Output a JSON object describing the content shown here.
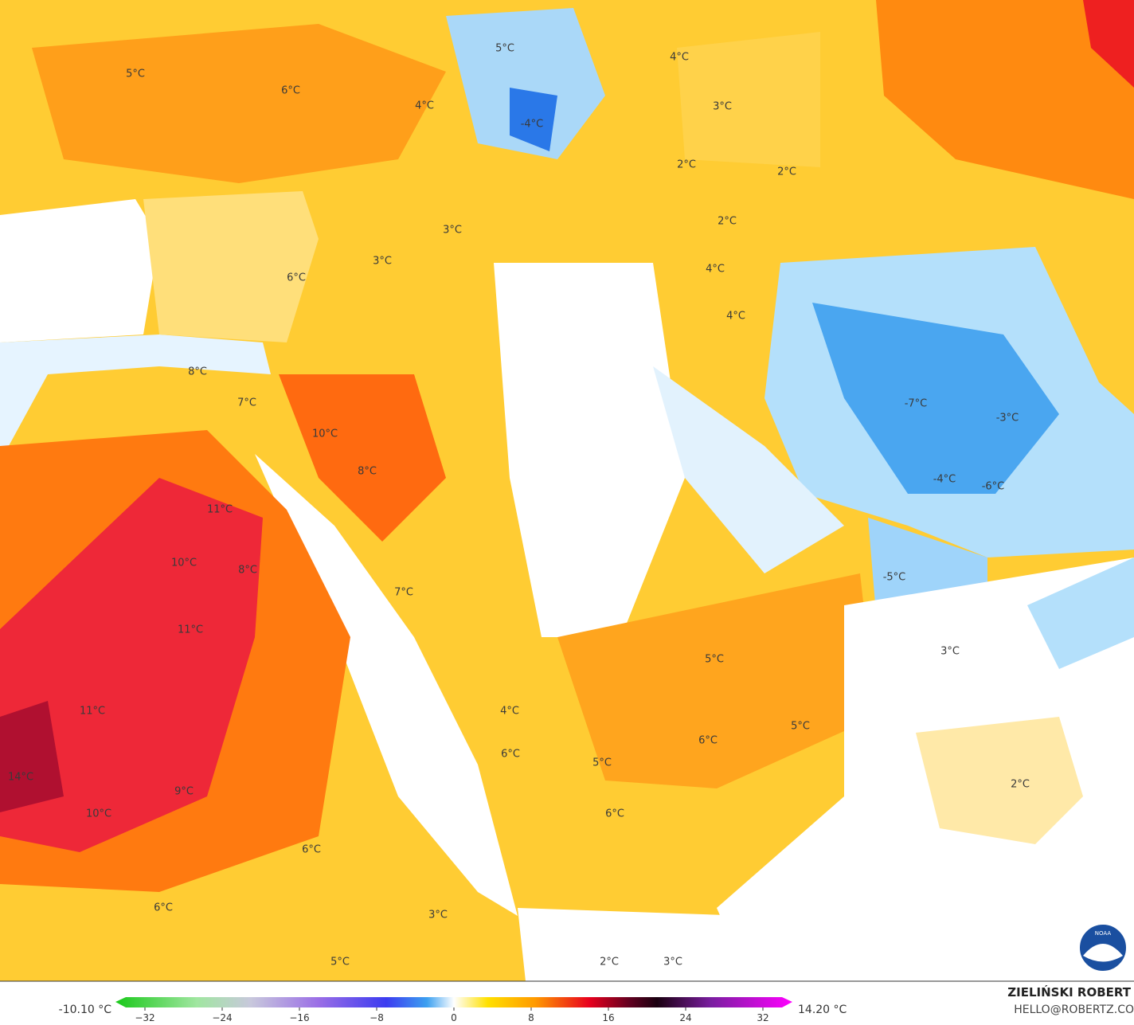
{
  "map": {
    "labels": [
      "5°C",
      "6°C",
      "4°C",
      "5°C",
      "-4°C",
      "4°C",
      "3°C",
      "2°C",
      "2°C",
      "2°C",
      "3°C",
      "3°C",
      "6°C",
      "4°C",
      "4°C",
      "8°C",
      "7°C",
      "10°C",
      "8°C",
      "-7°C",
      "-3°C",
      "-4°C",
      "-6°C",
      "11°C",
      "10°C",
      "8°C",
      "7°C",
      "-5°C",
      "11°C",
      "3°C",
      "5°C",
      "11°C",
      "4°C",
      "6°C",
      "5°C",
      "6°C",
      "5°C",
      "14°C",
      "9°C",
      "10°C",
      "6°C",
      "2°C",
      "6°C",
      "6°C",
      "3°C",
      "5°C",
      "2°C",
      "3°C"
    ]
  },
  "colorbar": {
    "min_label": "-10.10 °C",
    "max_label": "14.20 °C",
    "ticks": [
      {
        "value": -32,
        "label": "−32"
      },
      {
        "value": -24,
        "label": "−24"
      },
      {
        "value": -16,
        "label": "−16"
      },
      {
        "value": -8,
        "label": "−8"
      },
      0,
      8,
      16,
      24,
      32
    ]
  },
  "credit": {
    "author": "ZIELIŃSKI ROBERT",
    "email": "HELLO@ROBERTZ.CO",
    "logo": "NOAA"
  }
}
